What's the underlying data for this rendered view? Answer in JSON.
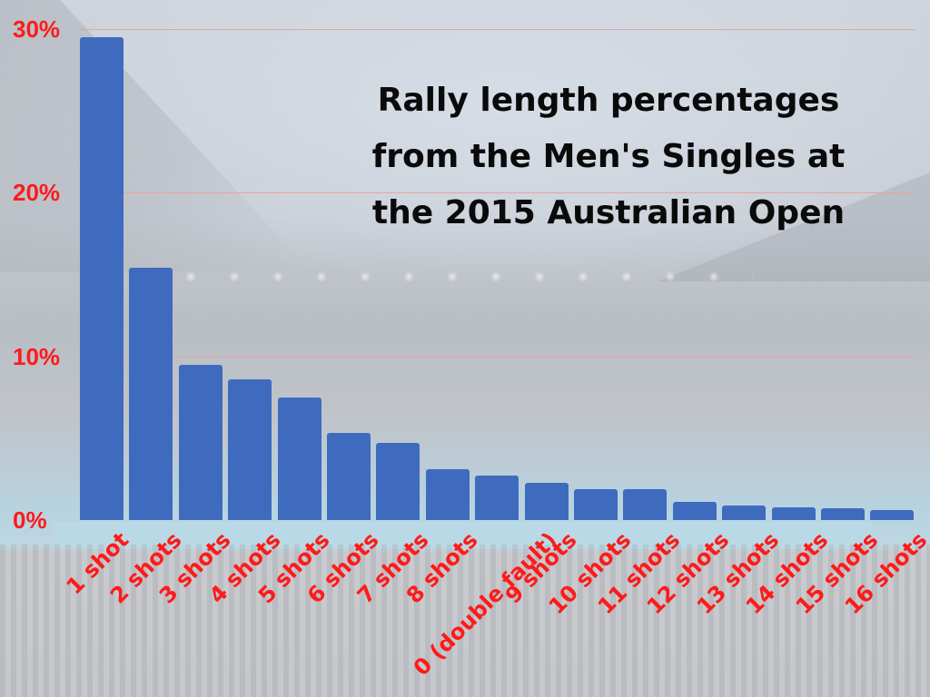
{
  "chart_data": {
    "type": "bar",
    "title": "Rally length percentages from the Men's Singles at the 2015 Australian Open",
    "title_lines": [
      "Rally length percentages",
      "from the Men's Singles at",
      "the 2015 Australian Open"
    ],
    "xlabel": "",
    "ylabel": "",
    "ylim": [
      0,
      30
    ],
    "yticks": [
      "0%",
      "10%",
      "20%",
      "30%"
    ],
    "grid": true,
    "legend": null,
    "categories": [
      "1 shot",
      "2 shots",
      "3 shots",
      "4 shots",
      "5 shots",
      "6 shots",
      "7 shots",
      "8 shots",
      "0 (double fault)",
      "9 shots",
      "10 shots",
      "11 shots",
      "12 shots",
      "13 shots",
      "14 shots",
      "15 shots",
      "16 shots"
    ],
    "values": [
      29.5,
      15.4,
      9.5,
      8.6,
      7.5,
      5.3,
      4.7,
      3.1,
      2.7,
      2.3,
      1.9,
      1.9,
      1.1,
      0.9,
      0.8,
      0.7,
      0.6
    ],
    "colors": {
      "bar": "#3f6bbf",
      "tick_labels": "#ff1a1a",
      "gridline": "#e8a3a3",
      "title": "#0a0a0a"
    }
  }
}
